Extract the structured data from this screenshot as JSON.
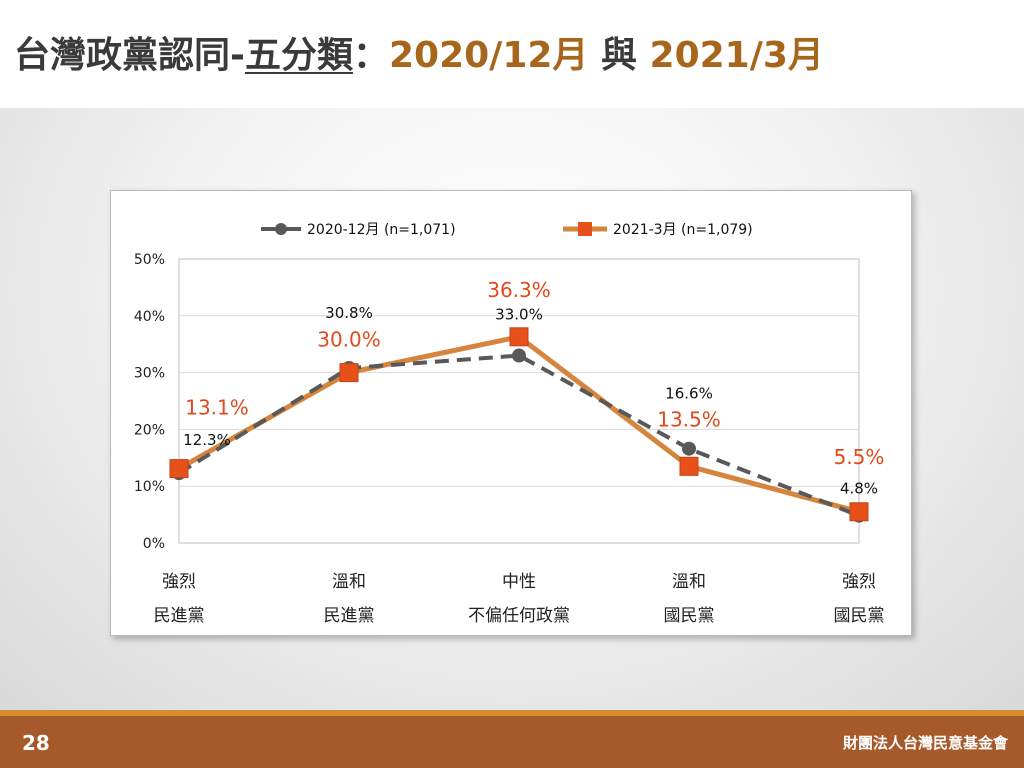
{
  "slide": {
    "title_main": "台灣政黨認同-",
    "title_underlined": "五分類",
    "title_colon": "：",
    "title_date1": "2020/12月",
    "title_connector": " 與 ",
    "title_date2": "2021/3月",
    "page_number": "28",
    "organization": "財團法人台灣民意基金會"
  },
  "colors": {
    "series_2020": "#595959",
    "series_2021_line": "#d6853f",
    "series_2021_marker": "#e8501a",
    "label_2021": "#e04a1c",
    "title_accent": "#a8661c",
    "footer": "#a65a2c"
  },
  "chart_data": {
    "type": "line",
    "categories": [
      [
        "強烈",
        "民進黨"
      ],
      [
        "溫和",
        "民進黨"
      ],
      [
        "中性",
        "不偏任何政黨"
      ],
      [
        "溫和",
        "國民黨"
      ],
      [
        "強烈",
        "國民黨"
      ]
    ],
    "ylim": [
      0,
      50
    ],
    "yticks": [
      "0%",
      "10%",
      "20%",
      "30%",
      "40%",
      "50%"
    ],
    "grid": true,
    "legend_position": "top",
    "series": [
      {
        "name": "2020-12月 (n=1,071)",
        "style": "dashed, circle markers",
        "values": [
          12.3,
          30.8,
          33.0,
          16.6,
          4.8
        ],
        "labels": [
          "12.3%",
          "30.8%",
          "33.0%",
          "16.6%",
          "4.8%"
        ]
      },
      {
        "name": "2021-3月 (n=1,079)",
        "style": "solid, square markers",
        "values": [
          13.1,
          30.0,
          36.3,
          13.5,
          5.5
        ],
        "labels": [
          "13.1%",
          "30.0%",
          "36.3%",
          "13.5%",
          "5.5%"
        ]
      }
    ]
  }
}
